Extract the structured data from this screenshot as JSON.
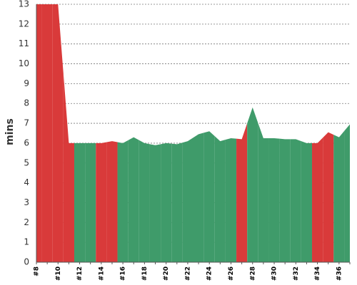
{
  "chart_data": {
    "type": "area",
    "y_label": "mins",
    "categories": [
      "#8",
      null,
      "#10",
      null,
      "#12",
      null,
      "#14",
      null,
      "#16",
      null,
      "#18",
      null,
      "#20",
      null,
      "#22",
      null,
      "#24",
      null,
      "#26",
      null,
      "#28",
      null,
      "#30",
      null,
      "#32",
      null,
      "#34",
      null,
      "#36",
      null
    ],
    "values": [
      13,
      13,
      13,
      6,
      6,
      6,
      6,
      6.1,
      6.0,
      6.3,
      6.0,
      5.9,
      6.0,
      5.95,
      6.1,
      6.45,
      6.6,
      6.1,
      6.25,
      6.2,
      7.8,
      6.25,
      6.25,
      6.2,
      6.2,
      6.0,
      6.0,
      6.55,
      6.3,
      6.95
    ],
    "colors": [
      "#d93a3a",
      "#d93a3a",
      "#d93a3a",
      "#d93a3a",
      "#3f9b6a",
      "#3f9b6a",
      "#d93a3a",
      "#d93a3a",
      "#3f9b6a",
      "#3f9b6a",
      "#3f9b6a",
      "#3f9b6a",
      "#3f9b6a",
      "#3f9b6a",
      "#3f9b6a",
      "#3f9b6a",
      "#3f9b6a",
      "#3f9b6a",
      "#3f9b6a",
      "#d93a3a",
      "#3f9b6a",
      "#3f9b6a",
      "#3f9b6a",
      "#3f9b6a",
      "#3f9b6a",
      "#3f9b6a",
      "#d93a3a",
      "#d93a3a",
      "#3f9b6a",
      "#3f9b6a"
    ],
    "ylim": [
      0,
      13
    ],
    "yticks": [
      0,
      1,
      2,
      3,
      4,
      5,
      6,
      7,
      8,
      9,
      10,
      11,
      12,
      13
    ],
    "grid": true
  }
}
